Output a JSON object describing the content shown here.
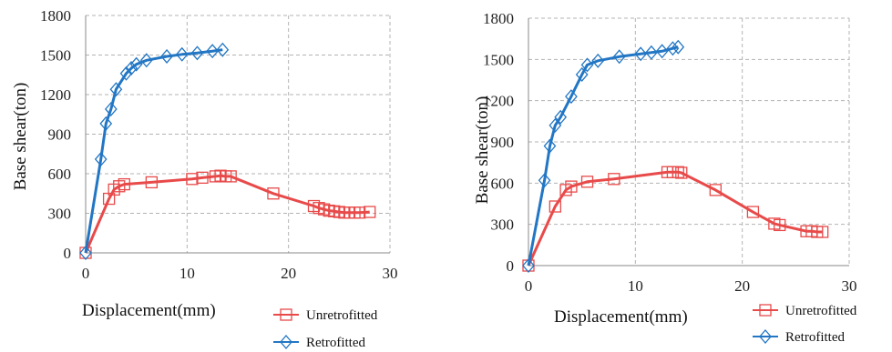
{
  "colors": {
    "unretrofitted": "#e84a4a",
    "retrofitted": "#2276c4"
  },
  "chart_data": [
    {
      "type": "line",
      "xlabel": "Displacement(mm)",
      "ylabel": "Base shear(ton)",
      "xlim": [
        0,
        30
      ],
      "ylim": [
        0,
        1800
      ],
      "xticks": [
        0,
        10,
        20,
        30
      ],
      "yticks": [
        0,
        300,
        600,
        900,
        1200,
        1500,
        1800
      ],
      "grid": true,
      "legend": "bottom-right",
      "series": [
        {
          "name": "Unretrofitted",
          "marker": "square",
          "x": [
            0,
            2.3,
            2.8,
            3.3,
            3.8,
            6.5,
            10.5,
            11.5,
            12.8,
            13.3,
            13.8,
            14.3,
            18.5,
            22.5,
            23.0,
            23.5,
            24.0,
            24.5,
            25.0,
            25.5,
            26.0,
            26.5,
            27.0,
            28.0
          ],
          "y": [
            0,
            410,
            480,
            505,
            520,
            535,
            560,
            570,
            580,
            585,
            580,
            580,
            450,
            355,
            340,
            330,
            320,
            315,
            310,
            305,
            305,
            305,
            305,
            310
          ]
        },
        {
          "name": "Retrofitted",
          "marker": "diamond",
          "x": [
            0,
            1.5,
            2.0,
            2.5,
            3.0,
            4.0,
            4.5,
            5.0,
            6.0,
            8.0,
            9.5,
            11.0,
            12.5,
            13.5
          ],
          "y": [
            0,
            710,
            980,
            1090,
            1240,
            1360,
            1400,
            1430,
            1460,
            1490,
            1505,
            1515,
            1530,
            1540
          ]
        }
      ]
    },
    {
      "type": "line",
      "xlabel": "Displacement(mm)",
      "ylabel": "Base shear(ton)",
      "xlim": [
        0,
        30
      ],
      "ylim": [
        0,
        1800
      ],
      "xticks": [
        0,
        10,
        20,
        30
      ],
      "yticks": [
        0,
        300,
        600,
        900,
        1200,
        1500,
        1800
      ],
      "grid": true,
      "legend": "bottom-right",
      "series": [
        {
          "name": "Unretrofitted",
          "marker": "square",
          "x": [
            0,
            2.5,
            3.5,
            4.0,
            5.5,
            8.0,
            13.0,
            13.5,
            14.0,
            14.3,
            17.5,
            21.0,
            23.0,
            23.5,
            26.0,
            26.5,
            27.0,
            27.5
          ],
          "y": [
            0,
            430,
            550,
            575,
            610,
            630,
            680,
            680,
            680,
            675,
            550,
            390,
            305,
            295,
            250,
            250,
            245,
            245
          ]
        },
        {
          "name": "Retrofitted",
          "marker": "diamond",
          "x": [
            0,
            1.5,
            2.0,
            2.5,
            3.0,
            4.0,
            5.0,
            5.5,
            6.5,
            8.5,
            10.5,
            11.5,
            12.5,
            13.5,
            14.0
          ],
          "y": [
            0,
            620,
            870,
            1020,
            1080,
            1230,
            1390,
            1460,
            1490,
            1520,
            1540,
            1550,
            1560,
            1580,
            1590
          ]
        }
      ]
    }
  ]
}
